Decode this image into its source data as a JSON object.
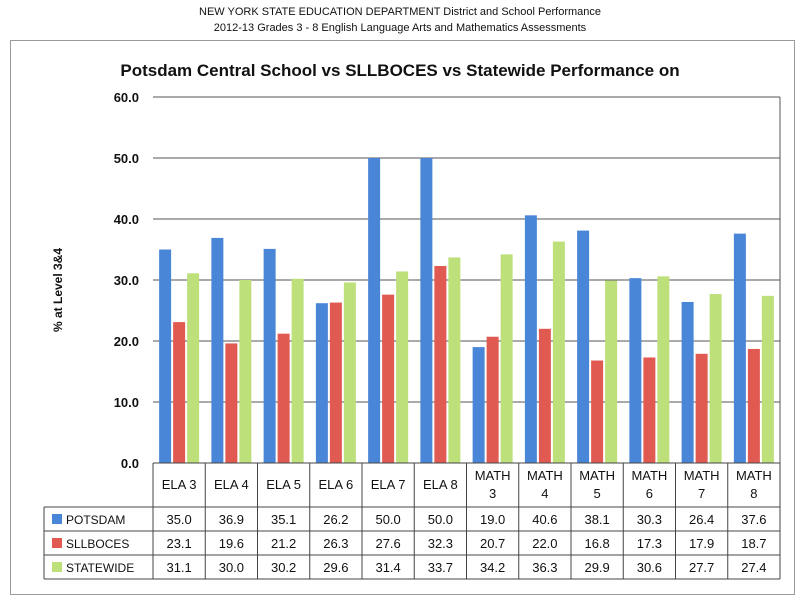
{
  "header": {
    "line1": "NEW YORK STATE EDUCATION DEPARTMENT  District and School Performance",
    "line2": "2012-13 Grades 3 - 8 English Language Arts and Mathematics Assessments"
  },
  "chart_data": {
    "type": "bar",
    "title": "Potsdam Central School vs SLLBOCES vs Statewide Performance on",
    "ylabel": "% at Level 3&4",
    "ylim": [
      0,
      60
    ],
    "yticks": [
      "0.0",
      "10.0",
      "20.0",
      "30.0",
      "40.0",
      "50.0",
      "60.0"
    ],
    "grid": true,
    "legend": "data-table-left",
    "categories": [
      "ELA 3",
      "ELA 4",
      "ELA 5",
      "ELA 6",
      "ELA 7",
      "ELA 8",
      "MATH 3",
      "MATH 4",
      "MATH 5",
      "MATH 6",
      "MATH 7",
      "MATH 8"
    ],
    "series": [
      {
        "name": "POTSDAM",
        "color": "#4a86d8",
        "values": [
          35.0,
          36.9,
          35.1,
          26.2,
          50.0,
          50.0,
          19.0,
          40.6,
          38.1,
          30.3,
          26.4,
          37.6
        ],
        "labels": [
          "35.0",
          "36.9",
          "35.1",
          "26.2",
          "50.0",
          "50.0",
          "19.0",
          "40.6",
          "38.1",
          "30.3",
          "26.4",
          "37.6"
        ]
      },
      {
        "name": "SLLBOCES",
        "color": "#e05a52",
        "values": [
          23.1,
          19.6,
          21.2,
          26.3,
          27.6,
          32.3,
          20.7,
          22.0,
          16.8,
          17.3,
          17.9,
          18.7
        ],
        "labels": [
          "23.1",
          "19.6",
          "21.2",
          "26.3",
          "27.6",
          "32.3",
          "20.7",
          "22.0",
          "16.8",
          "17.3",
          "17.9",
          "18.7"
        ]
      },
      {
        "name": "STATEWIDE",
        "color": "#bde07a",
        "values": [
          31.1,
          30.0,
          30.2,
          29.6,
          31.4,
          33.7,
          34.2,
          36.3,
          29.9,
          30.6,
          27.7,
          27.4
        ],
        "labels": [
          "31.1",
          "30.0",
          "30.2",
          "29.6",
          "31.4",
          "33.7",
          "34.2",
          "36.3",
          "29.9",
          "30.6",
          "27.7",
          "27.4"
        ]
      }
    ]
  }
}
